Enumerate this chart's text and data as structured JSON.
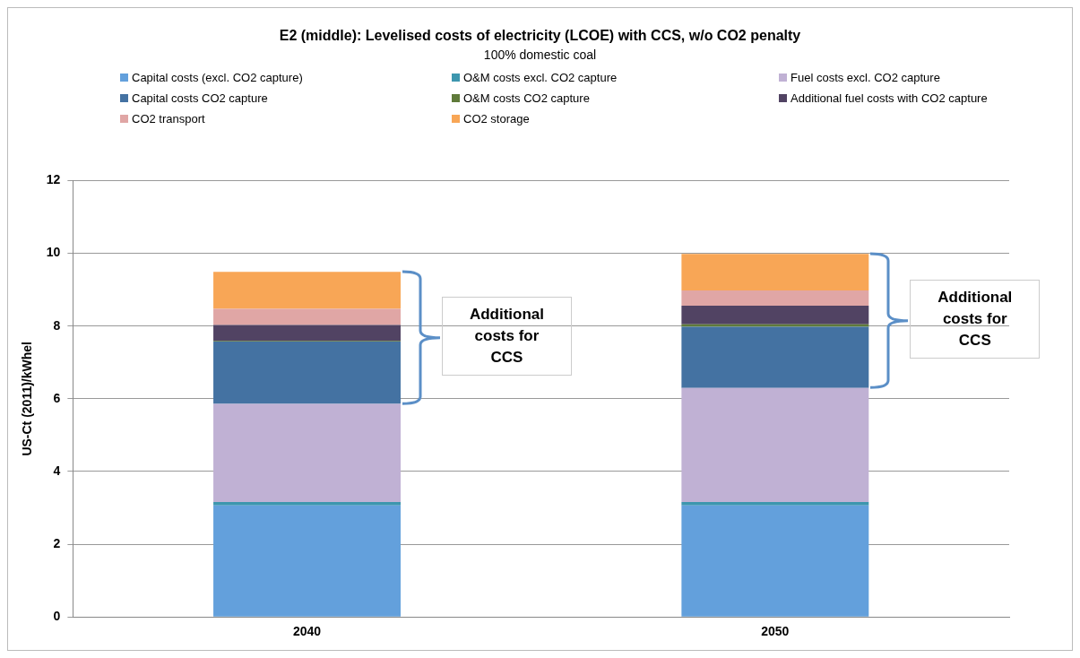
{
  "chart_data": {
    "type": "bar",
    "title": "E2 (middle): Levelised costs of electricity (LCOE) with CCS, w/o CO2 penalty",
    "subtitle": "100% domestic coal",
    "ylabel": "US-Ct (2011)/kWhel",
    "categories": [
      "2040",
      "2050"
    ],
    "stacked": true,
    "ylim": [
      0,
      12
    ],
    "yticks": [
      0,
      2,
      4,
      6,
      8,
      10,
      12
    ],
    "grid": "y",
    "legend": "top",
    "series": [
      {
        "name": "Capital costs (excl. CO2 capture)",
        "color": "#63a0dc",
        "values": [
          3.07,
          3.07
        ]
      },
      {
        "name": "O&M costs excl. CO2 capture",
        "color": "#3d96ae",
        "values": [
          0.09,
          0.09
        ]
      },
      {
        "name": "Fuel costs excl. CO2 capture",
        "color": "#c0b1d4",
        "values": [
          2.7,
          3.14
        ]
      },
      {
        "name": "Capital costs CO2 capture",
        "color": "#4472a2",
        "values": [
          1.71,
          1.68
        ]
      },
      {
        "name": "O&M costs CO2 capture",
        "color": "#5f7a3a",
        "values": [
          0.02,
          0.07
        ]
      },
      {
        "name": "Additional fuel costs with CO2 capture",
        "color": "#514363",
        "values": [
          0.44,
          0.51
        ]
      },
      {
        "name": "CO2 transport",
        "color": "#e0a6a5",
        "values": [
          0.44,
          0.42
        ]
      },
      {
        "name": "CO2 storage",
        "color": "#f8a656",
        "values": [
          1.02,
          1.0
        ]
      }
    ],
    "annotations": [
      "Additional costs for CCS",
      "Additional costs for CCS"
    ]
  }
}
